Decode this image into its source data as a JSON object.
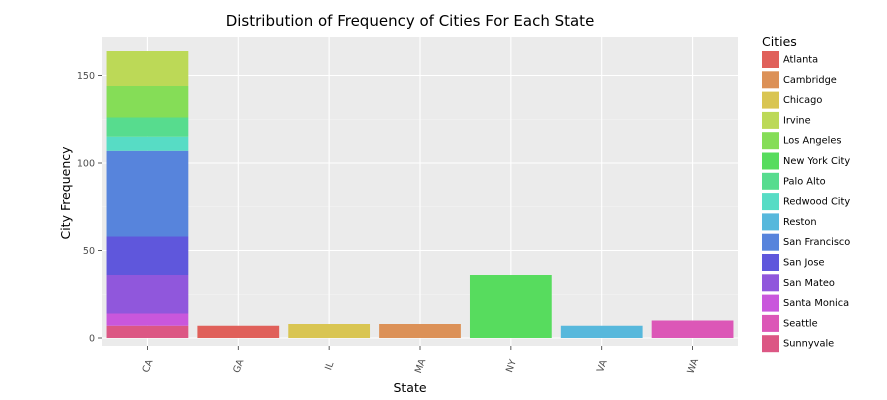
{
  "chart_data": {
    "type": "bar",
    "stacked": true,
    "title": "Distribution of Frequency of Cities For Each State",
    "xlabel": "State",
    "ylabel": "City Frequency",
    "ylim": [
      0,
      170
    ],
    "yticks": [
      0,
      50,
      100,
      150
    ],
    "categories": [
      "CA",
      "GA",
      "IL",
      "MA",
      "NY",
      "VA",
      "WA"
    ],
    "legend_title": "Cities",
    "legend_position": "right",
    "grid": true,
    "background": "#ebebeb",
    "series": [
      {
        "name": "Atlanta",
        "color": "#e0605a",
        "values": [
          0,
          7,
          0,
          0,
          0,
          0,
          0
        ]
      },
      {
        "name": "Cambridge",
        "color": "#dc9157",
        "values": [
          0,
          0,
          0,
          8,
          0,
          0,
          0
        ]
      },
      {
        "name": "Chicago",
        "color": "#d9c552",
        "values": [
          0,
          0,
          8,
          0,
          0,
          0,
          0
        ]
      },
      {
        "name": "Irvine",
        "color": "#bcd957",
        "values": [
          20,
          0,
          0,
          0,
          0,
          0,
          0
        ]
      },
      {
        "name": "Los Angeles",
        "color": "#85dd57",
        "values": [
          18,
          0,
          0,
          0,
          0,
          0,
          0
        ]
      },
      {
        "name": "New York City",
        "color": "#57dc5e",
        "values": [
          0,
          0,
          0,
          0,
          36,
          0,
          0
        ]
      },
      {
        "name": "Palo Alto",
        "color": "#57dc8e",
        "values": [
          11,
          0,
          0,
          0,
          0,
          0,
          0
        ]
      },
      {
        "name": "Redwood City",
        "color": "#57dcc5",
        "values": [
          8,
          0,
          0,
          0,
          0,
          0,
          0
        ]
      },
      {
        "name": "Reston",
        "color": "#57b8dc",
        "values": [
          0,
          0,
          0,
          0,
          0,
          7,
          0
        ]
      },
      {
        "name": "San Francisco",
        "color": "#5784dc",
        "values": [
          49,
          0,
          0,
          0,
          0,
          0,
          0
        ]
      },
      {
        "name": "San Jose",
        "color": "#5f57dc",
        "values": [
          22,
          0,
          0,
          0,
          0,
          0,
          0
        ]
      },
      {
        "name": "San Mateo",
        "color": "#9057dc",
        "values": [
          22,
          0,
          0,
          0,
          0,
          0,
          0
        ]
      },
      {
        "name": "Santa Monica",
        "color": "#c957dc",
        "values": [
          7,
          0,
          0,
          0,
          0,
          0,
          0
        ]
      },
      {
        "name": "Seattle",
        "color": "#dc57b7",
        "values": [
          0,
          0,
          0,
          0,
          0,
          0,
          10
        ]
      },
      {
        "name": "Sunnyvale",
        "color": "#dc5784",
        "values": [
          7,
          0,
          0,
          0,
          0,
          0,
          0
        ]
      }
    ]
  }
}
